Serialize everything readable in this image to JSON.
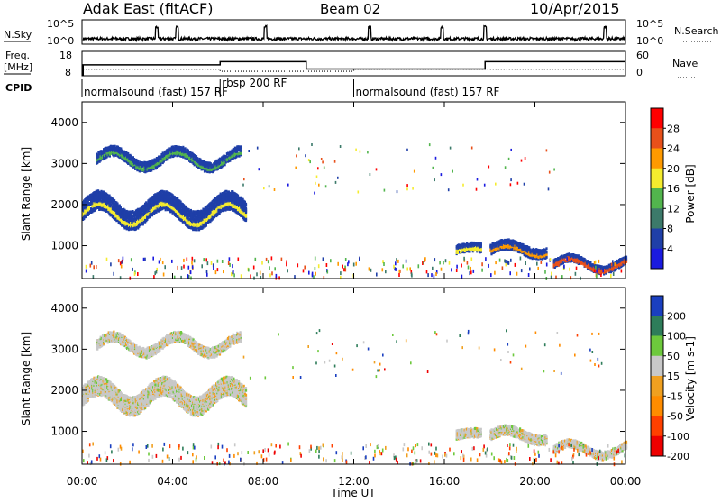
{
  "header": {
    "station": "Adak East (fitACF)",
    "beam": "Beam 02",
    "date": "10/Apr/2015"
  },
  "nsky_panel": {
    "left_label": "N.Sky",
    "left_ticks": [
      "10^5",
      "10^0"
    ],
    "right_ticks": [
      "10^5",
      "10^0"
    ],
    "right_label": "N.Search"
  },
  "freq_panel": {
    "left_label_1": "Freq.",
    "left_label_2": "[MHz]",
    "left_ticks": [
      "18",
      "8"
    ],
    "right_ticks": [
      "60",
      "0"
    ],
    "right_label": "Nave",
    "cpid_label": "CPID"
  },
  "cpid_segments": [
    {
      "label": "normalsound (fast) 157 RF",
      "start_h": 0
    },
    {
      "label": "rbsp 200 RF",
      "start_h": 6.1
    },
    {
      "label": "normalsound (fast) 157 RF",
      "start_h": 12
    }
  ],
  "power_panel": {
    "ylabel": "Slant Range [km]",
    "colorbar_label": "Power [dB]",
    "colorbar_ticks": [
      "28",
      "24",
      "20",
      "16",
      "12",
      "8",
      "4"
    ],
    "colorbar_colors": [
      "#ff0000",
      "#e8501a",
      "#ff9a00",
      "#f5ec2e",
      "#52b54d",
      "#3c7a6a",
      "#1f3fa8",
      "#1a1ae0"
    ]
  },
  "velocity_panel": {
    "ylabel": "Slant Range [km]",
    "colorbar_label": "Velocity [m s-1]",
    "colorbar_ticks": [
      "200",
      "100",
      "50",
      "15",
      "-15",
      "-50",
      "-100",
      "-200"
    ],
    "colorbar_colors": [
      "#1a3fc0",
      "#2e7d5a",
      "#6dc93c",
      "#c8c8c8",
      "#f0a020",
      "#ff8c00",
      "#ff4000",
      "#ee0000"
    ]
  },
  "x_axis": {
    "label": "Time UT",
    "ticks": [
      "00:00",
      "04:00",
      "08:00",
      "12:00",
      "16:00",
      "20:00",
      "00:00"
    ]
  },
  "chart_data": [
    {
      "type": "line",
      "name": "nsky_nsearch",
      "x_unit": "hours UT",
      "xlim": [
        0,
        24
      ],
      "noise_level_log10": 0.5,
      "spikes_h": [
        3.3,
        4.2,
        8.1,
        12.7,
        15.9,
        17.8,
        23.1
      ]
    },
    {
      "type": "line",
      "name": "frequency_nave",
      "xlim": [
        0,
        24
      ],
      "freq_mhz": [
        {
          "start_h": 0.05,
          "end_h": 6.1,
          "value": 12.5
        },
        {
          "start_h": 6.1,
          "end_h": 9.9,
          "value": 13.8
        },
        {
          "start_h": 9.9,
          "end_h": 11.8,
          "value": 10.8
        },
        {
          "start_h": 11.8,
          "end_h": 17.8,
          "value": 10.8
        },
        {
          "start_h": 17.8,
          "end_h": 24,
          "value": 13.8
        }
      ],
      "nave": [
        {
          "start_h": 0.05,
          "end_h": 6.1,
          "value": 16
        },
        {
          "start_h": 6.1,
          "end_h": 12,
          "value": 11
        },
        {
          "start_h": 12,
          "end_h": 24,
          "value": 16
        }
      ]
    },
    {
      "type": "heatmap",
      "name": "power",
      "xlim": [
        0,
        24
      ],
      "ylim": [
        200,
        4500
      ],
      "yticks": [
        1000,
        2000,
        3000,
        4000
      ],
      "echo_bands": [
        {
          "t0": 0.0,
          "t1": 7.2,
          "r_center": 1900,
          "r_width": 420,
          "wave_amp": 250,
          "level": 2
        },
        {
          "t0": 0.6,
          "t1": 7.0,
          "r_center": 3150,
          "r_width": 220,
          "wave_amp": 200,
          "level": 1
        },
        {
          "t0": 16.5,
          "t1": 17.6,
          "r_center": 950,
          "r_width": 200,
          "wave_amp": 60,
          "level": 2
        },
        {
          "t0": 18.0,
          "t1": 20.5,
          "r_center": 950,
          "r_width": 220,
          "wave_amp": 120,
          "level": 3
        },
        {
          "t0": 20.8,
          "t1": 24.0,
          "r_center": 600,
          "r_width": 180,
          "wave_amp": 150,
          "level": 4
        }
      ]
    },
    {
      "type": "heatmap",
      "name": "velocity",
      "xlim": [
        0,
        24
      ],
      "ylim": [
        200,
        4500
      ],
      "yticks": [
        1000,
        2000,
        3000,
        4000
      ],
      "echo_bands": [
        {
          "t0": 0.0,
          "t1": 7.2,
          "r_center": 1900,
          "r_width": 420,
          "wave_amp": 250,
          "level": 3
        },
        {
          "t0": 0.6,
          "t1": 7.0,
          "r_center": 3150,
          "r_width": 220,
          "wave_amp": 200,
          "level": 4
        },
        {
          "t0": 16.5,
          "t1": 17.6,
          "r_center": 950,
          "r_width": 200,
          "wave_amp": 60,
          "level": 3
        },
        {
          "t0": 18.0,
          "t1": 20.5,
          "r_center": 950,
          "r_width": 220,
          "wave_amp": 120,
          "level": 3
        },
        {
          "t0": 20.8,
          "t1": 24.0,
          "r_center": 600,
          "r_width": 180,
          "wave_amp": 150,
          "level": 3
        }
      ]
    }
  ]
}
